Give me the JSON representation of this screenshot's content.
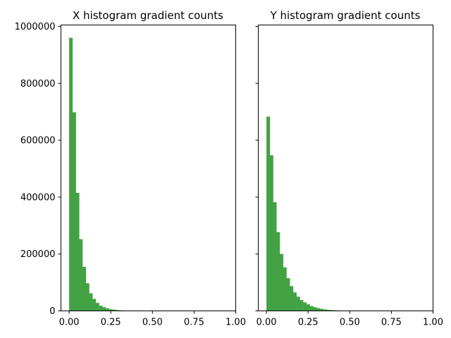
{
  "chart_data": [
    {
      "type": "bar",
      "title": "X histogram gradient counts",
      "xlabel": "",
      "ylabel": "",
      "xlim": [
        -0.049,
        1.0
      ],
      "ylim": [
        0,
        1005000
      ],
      "xticks": [
        "0.00",
        "0.25",
        "0.50",
        "0.75",
        "1.00"
      ],
      "yticks": [
        "0",
        "200000",
        "400000",
        "600000",
        "800000",
        "1000000"
      ],
      "bin_width": 0.02,
      "bin_start": 0.0,
      "values": [
        960000,
        698000,
        415000,
        252000,
        155000,
        97000,
        62000,
        42000,
        28000,
        18000,
        13000,
        9000,
        6000,
        4500,
        3000,
        2000,
        1500,
        1000,
        700,
        500,
        300,
        200,
        150,
        100,
        70,
        50,
        30,
        20,
        15,
        10,
        8,
        6,
        5,
        4,
        3,
        2,
        2,
        1,
        1,
        1,
        1,
        1,
        1,
        1,
        1,
        1,
        1,
        1,
        1,
        1
      ],
      "color": "#43a243",
      "grid": false
    },
    {
      "type": "bar",
      "title": "Y histogram gradient counts",
      "xlabel": "",
      "ylabel": "",
      "xlim": [
        -0.049,
        1.0
      ],
      "ylim": [
        0,
        1005000
      ],
      "xticks": [
        "0.00",
        "0.25",
        "0.50",
        "0.75",
        "1.00"
      ],
      "yticks": [],
      "bin_width": 0.02,
      "bin_start": 0.0,
      "values": [
        683000,
        547000,
        382000,
        277000,
        200000,
        153000,
        115000,
        87000,
        65000,
        50000,
        38000,
        30000,
        23000,
        17000,
        13000,
        10000,
        7500,
        5500,
        4000,
        3000,
        2200,
        1600,
        1100,
        800,
        600,
        400,
        300,
        200,
        150,
        100,
        80,
        60,
        40,
        30,
        20,
        15,
        10,
        8,
        6,
        5,
        4,
        3,
        2,
        2,
        1,
        1,
        1,
        1,
        1,
        1
      ],
      "color": "#43a243",
      "grid": false
    }
  ]
}
